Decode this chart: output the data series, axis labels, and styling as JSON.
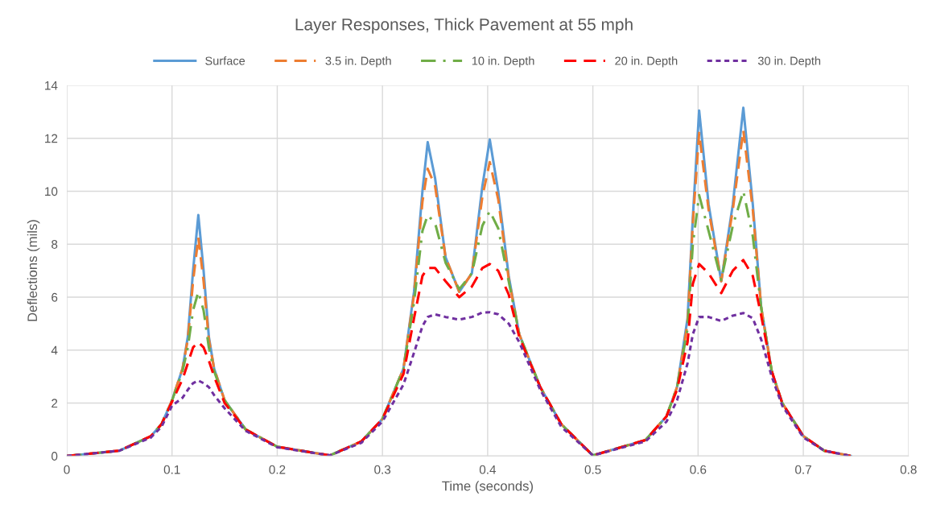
{
  "chart_data": {
    "type": "line",
    "title": "Layer Responses, Thick Pavement at 55 mph",
    "xlabel": "Time (seconds)",
    "ylabel": "Deflections (mils)",
    "x": [
      0,
      0.05,
      0.08,
      0.09,
      0.1,
      0.11,
      0.115,
      0.12,
      0.125,
      0.13,
      0.135,
      0.14,
      0.15,
      0.17,
      0.2,
      0.25,
      0.28,
      0.3,
      0.32,
      0.33,
      0.338,
      0.343,
      0.35,
      0.36,
      0.373,
      0.385,
      0.395,
      0.402,
      0.41,
      0.42,
      0.43,
      0.45,
      0.47,
      0.5,
      0.55,
      0.57,
      0.58,
      0.59,
      0.595,
      0.601,
      0.61,
      0.622,
      0.633,
      0.643,
      0.652,
      0.66,
      0.67,
      0.68,
      0.7,
      0.72,
      0.745
    ],
    "series": [
      {
        "name": "Surface",
        "color": "#5b9bd5",
        "line_style": "solid",
        "values": [
          0,
          0.2,
          0.75,
          1.2,
          2.1,
          3.3,
          4.5,
          7.0,
          9.1,
          7.0,
          4.5,
          3.3,
          2.1,
          1.0,
          0.35,
          0.02,
          0.55,
          1.4,
          3.3,
          6.2,
          10.0,
          11.85,
          10.5,
          7.5,
          6.2,
          6.9,
          10.2,
          11.95,
          10.0,
          6.8,
          4.6,
          2.6,
          1.2,
          0.02,
          0.6,
          1.5,
          2.6,
          5.2,
          9.0,
          13.05,
          9.5,
          6.6,
          9.5,
          13.15,
          9.5,
          5.6,
          3.2,
          2.0,
          0.75,
          0.2,
          0
        ]
      },
      {
        "name": "3.5 in. Depth",
        "color": "#ed7d31",
        "line_style": "dashed",
        "values": [
          0,
          0.2,
          0.75,
          1.2,
          2.1,
          3.3,
          4.4,
          6.6,
          8.25,
          6.6,
          4.4,
          3.3,
          2.1,
          1.0,
          0.35,
          0.02,
          0.55,
          1.4,
          3.3,
          6.1,
          9.6,
          10.85,
          10.2,
          7.5,
          6.2,
          6.9,
          9.8,
          11.1,
          9.7,
          6.7,
          4.6,
          2.6,
          1.2,
          0.02,
          0.6,
          1.5,
          2.6,
          5.0,
          8.8,
          12.2,
          9.3,
          6.6,
          9.3,
          12.3,
          9.3,
          5.6,
          3.2,
          2.0,
          0.75,
          0.2,
          0
        ]
      },
      {
        "name": "10 in. Depth",
        "color": "#70ad47",
        "line_style": "dashdot",
        "values": [
          0,
          0.2,
          0.75,
          1.2,
          2.1,
          3.2,
          4.1,
          5.5,
          6.2,
          5.5,
          4.1,
          3.2,
          2.1,
          1.0,
          0.35,
          0.02,
          0.55,
          1.4,
          3.3,
          5.8,
          8.5,
          9.1,
          8.8,
          7.3,
          6.3,
          6.9,
          8.7,
          9.25,
          8.6,
          6.6,
          4.6,
          2.6,
          1.2,
          0.02,
          0.6,
          1.5,
          2.6,
          4.8,
          8.0,
          9.85,
          8.5,
          6.65,
          8.7,
          10.0,
          8.3,
          5.6,
          3.2,
          2.0,
          0.75,
          0.2,
          0
        ]
      },
      {
        "name": "20 in. Depth",
        "color": "#ff0000",
        "line_style": "dashed",
        "values": [
          0,
          0.2,
          0.75,
          1.2,
          2.05,
          2.9,
          3.5,
          4.1,
          4.3,
          4.1,
          3.6,
          3.0,
          2.0,
          1.0,
          0.35,
          0.02,
          0.55,
          1.4,
          3.1,
          5.2,
          6.8,
          7.1,
          7.1,
          6.6,
          6.0,
          6.4,
          7.1,
          7.25,
          7.0,
          6.1,
          4.5,
          2.6,
          1.2,
          0.02,
          0.6,
          1.5,
          2.5,
          4.3,
          6.5,
          7.25,
          6.9,
          6.15,
          7.0,
          7.4,
          6.8,
          5.3,
          3.2,
          2.0,
          0.75,
          0.2,
          0
        ]
      },
      {
        "name": "30 in. Depth",
        "color": "#7030a0",
        "line_style": "dotted",
        "values": [
          0,
          0.2,
          0.7,
          1.1,
          1.9,
          2.2,
          2.5,
          2.75,
          2.85,
          2.75,
          2.6,
          2.3,
          1.8,
          0.95,
          0.33,
          0.02,
          0.5,
          1.3,
          2.7,
          3.9,
          4.9,
          5.25,
          5.35,
          5.25,
          5.15,
          5.25,
          5.42,
          5.43,
          5.35,
          5.0,
          4.3,
          2.5,
          1.1,
          0.02,
          0.55,
          1.3,
          2.1,
          3.5,
          4.6,
          5.25,
          5.25,
          5.1,
          5.3,
          5.4,
          5.2,
          4.4,
          3.0,
          1.9,
          0.7,
          0.2,
          0
        ]
      }
    ],
    "xlim": [
      0,
      0.8
    ],
    "xticks": [
      0,
      0.1,
      0.2,
      0.3,
      0.4,
      0.5,
      0.6,
      0.7,
      0.8
    ],
    "ylim": [
      0,
      14
    ],
    "yticks": [
      0,
      2,
      4,
      6,
      8,
      10,
      12,
      14
    ],
    "grid": true,
    "legend": "top",
    "marker": "none"
  }
}
